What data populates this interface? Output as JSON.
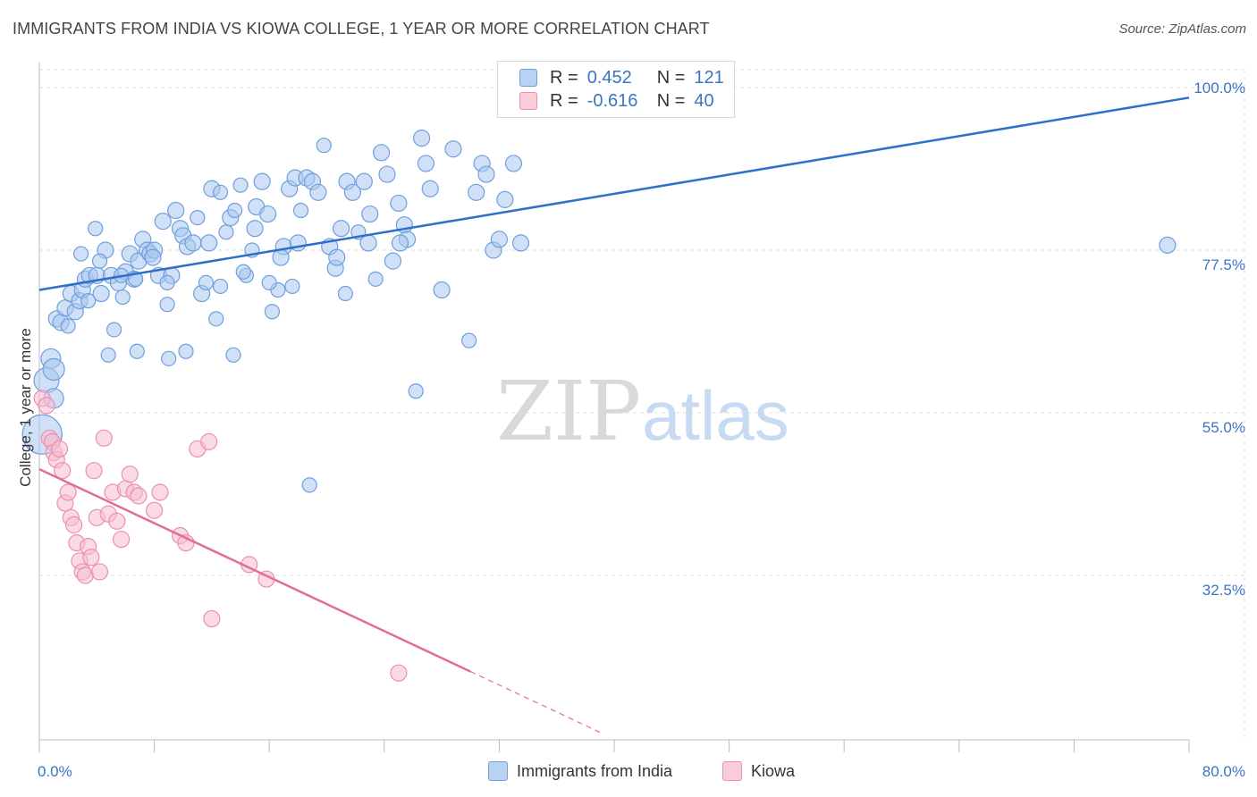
{
  "title": "IMMIGRANTS FROM INDIA VS KIOWA COLLEGE, 1 YEAR OR MORE CORRELATION CHART",
  "source": "Source: ZipAtlas.com",
  "watermark": {
    "zip": "ZIP",
    "atlas": "atlas"
  },
  "colors": {
    "blue_fill": "#a9c8f0",
    "blue_stroke": "#6f9fdc",
    "blue_line": "#2f6fc9",
    "pink_fill": "#f6bdd0",
    "pink_stroke": "#ec8fb0",
    "pink_line": "#e46c98",
    "axis_label": "#3a75c4"
  },
  "legend": {
    "r_label": "R =",
    "n_label": "N =",
    "series": [
      {
        "r": "0.452",
        "n": "121"
      },
      {
        "r": "-0.616",
        "n": "40"
      }
    ]
  },
  "chart_data": {
    "type": "scatter",
    "ylabel": "College, 1 year or more",
    "xlim": [
      0,
      80
    ],
    "ylim": [
      10,
      103
    ],
    "x_ticks": [
      "0.0%",
      "80.0%"
    ],
    "y_ticks": [
      {
        "value": 100.0,
        "label": "100.0%"
      },
      {
        "value": 77.5,
        "label": "77.5%"
      },
      {
        "value": 55.0,
        "label": "55.0%"
      },
      {
        "value": 32.5,
        "label": "32.5%"
      }
    ],
    "grid": true,
    "legend_position": "top-center",
    "series": [
      {
        "name": "Immigrants from India",
        "trend": [
          [
            0,
            72.0
          ],
          [
            80,
            98.6
          ]
        ],
        "points": [
          [
            0.2,
            52,
            22
          ],
          [
            0.5,
            59.5,
            14
          ],
          [
            0.8,
            62.5,
            11
          ],
          [
            1.0,
            61,
            12
          ],
          [
            1.2,
            68,
            9
          ],
          [
            1.5,
            67.5,
            9
          ],
          [
            1.8,
            69.5,
            9
          ],
          [
            2.2,
            71.5,
            9
          ],
          [
            2.5,
            69,
            9
          ],
          [
            2.8,
            70.5,
            9
          ],
          [
            3.0,
            72,
            9
          ],
          [
            3.2,
            73.5,
            9
          ],
          [
            3.5,
            74,
            9
          ],
          [
            4.0,
            74,
            9
          ],
          [
            4.3,
            71.5,
            9
          ],
          [
            4.6,
            77.5,
            9
          ],
          [
            5.0,
            74,
            9
          ],
          [
            5.2,
            66.5,
            8
          ],
          [
            5.5,
            73,
            9
          ],
          [
            5.8,
            71,
            8
          ],
          [
            6.0,
            74.5,
            9
          ],
          [
            6.3,
            77,
            9
          ],
          [
            6.6,
            73.5,
            9
          ],
          [
            6.9,
            76,
            9
          ],
          [
            7.2,
            79,
            9
          ],
          [
            7.5,
            77.5,
            9
          ],
          [
            7.7,
            77,
            9
          ],
          [
            8.0,
            77.5,
            9
          ],
          [
            8.3,
            74,
            9
          ],
          [
            8.6,
            81.5,
            9
          ],
          [
            8.9,
            70,
            8
          ],
          [
            9.2,
            74,
            9
          ],
          [
            9.5,
            83,
            9
          ],
          [
            9.8,
            80.5,
            9
          ],
          [
            10.0,
            79.5,
            9
          ],
          [
            10.3,
            78,
            9
          ],
          [
            10.7,
            78.5,
            9
          ],
          [
            11.0,
            82,
            8
          ],
          [
            11.3,
            71.5,
            9
          ],
          [
            11.6,
            73,
            8
          ],
          [
            12.0,
            86,
            9
          ],
          [
            12.3,
            68,
            8
          ],
          [
            12.6,
            85.5,
            8
          ],
          [
            13.0,
            80,
            8
          ],
          [
            13.3,
            82,
            9
          ],
          [
            13.6,
            83,
            8
          ],
          [
            14.0,
            86.5,
            8
          ],
          [
            14.4,
            74,
            8
          ],
          [
            14.8,
            77.5,
            8
          ],
          [
            15.1,
            83.5,
            9
          ],
          [
            15.5,
            87,
            9
          ],
          [
            15.9,
            82.5,
            9
          ],
          [
            16.2,
            69,
            8
          ],
          [
            16.6,
            72,
            8
          ],
          [
            17.0,
            78,
            9
          ],
          [
            17.4,
            86,
            9
          ],
          [
            17.8,
            87.5,
            9
          ],
          [
            18.2,
            83,
            8
          ],
          [
            18.6,
            87.5,
            9
          ],
          [
            19.0,
            87,
            9
          ],
          [
            19.4,
            85.5,
            9
          ],
          [
            19.8,
            92,
            8
          ],
          [
            20.2,
            78,
            9
          ],
          [
            20.6,
            75,
            9
          ],
          [
            21.0,
            80.5,
            9
          ],
          [
            21.4,
            87,
            9
          ],
          [
            21.8,
            85.5,
            9
          ],
          [
            22.2,
            80,
            8
          ],
          [
            22.6,
            87,
            9
          ],
          [
            23.0,
            82.5,
            9
          ],
          [
            23.4,
            73.5,
            8
          ],
          [
            23.8,
            91,
            9
          ],
          [
            24.2,
            88,
            9
          ],
          [
            24.6,
            76,
            9
          ],
          [
            25.0,
            84,
            9
          ],
          [
            25.4,
            81,
            9
          ],
          [
            25.6,
            79,
            9
          ],
          [
            26.2,
            58,
            8
          ],
          [
            26.6,
            93,
            9
          ],
          [
            26.9,
            89.5,
            9
          ],
          [
            27.2,
            86,
            9
          ],
          [
            28.0,
            72,
            9
          ],
          [
            28.8,
            91.5,
            9
          ],
          [
            29.9,
            65,
            8
          ],
          [
            30.4,
            85.5,
            9
          ],
          [
            30.8,
            89.5,
            9
          ],
          [
            31.1,
            88,
            9
          ],
          [
            31.6,
            77.5,
            9
          ],
          [
            32.0,
            79,
            9
          ],
          [
            32.4,
            84.5,
            9
          ],
          [
            33.0,
            89.5,
            9
          ],
          [
            33.5,
            78.5,
            9
          ],
          [
            4.8,
            63,
            8
          ],
          [
            6.8,
            63.5,
            8
          ],
          [
            9.0,
            62.5,
            8
          ],
          [
            10.2,
            63.5,
            8
          ],
          [
            13.5,
            63,
            8
          ],
          [
            3.4,
            70.5,
            8
          ],
          [
            2.0,
            67,
            8
          ],
          [
            1.0,
            57,
            11
          ],
          [
            18.8,
            45,
            8
          ],
          [
            18.0,
            78.5,
            9
          ],
          [
            7.9,
            76.5,
            9
          ],
          [
            16.8,
            76.5,
            9
          ],
          [
            15.0,
            80.5,
            9
          ],
          [
            11.8,
            78.5,
            9
          ],
          [
            22.9,
            78.5,
            9
          ],
          [
            20.7,
            76.5,
            9
          ],
          [
            25.1,
            78.5,
            9
          ],
          [
            16.0,
            73,
            8
          ],
          [
            12.6,
            72.5,
            8
          ],
          [
            8.9,
            73,
            8
          ],
          [
            6.7,
            73.5,
            8
          ],
          [
            5.7,
            74,
            8
          ],
          [
            4.2,
            76,
            8
          ],
          [
            2.9,
            77,
            8
          ],
          [
            3.9,
            80.5,
            8
          ],
          [
            14.2,
            74.5,
            8
          ],
          [
            17.6,
            72.5,
            8
          ],
          [
            21.3,
            71.5,
            8
          ],
          [
            78.5,
            78.2,
            9
          ]
        ]
      },
      {
        "name": "Kiowa",
        "trend": [
          [
            0,
            47.2
          ],
          [
            30,
            19.2
          ]
        ],
        "trend_dashed": [
          [
            30,
            19.2
          ],
          [
            39,
            10.8
          ]
        ],
        "points": [
          [
            0.2,
            57,
            9
          ],
          [
            0.5,
            56,
            9
          ],
          [
            0.7,
            51.5,
            9
          ],
          [
            0.9,
            51,
            9
          ],
          [
            1.0,
            49.5,
            9
          ],
          [
            1.2,
            48.5,
            9
          ],
          [
            1.4,
            50,
            9
          ],
          [
            1.6,
            47,
            9
          ],
          [
            1.8,
            42.5,
            9
          ],
          [
            2.0,
            44,
            9
          ],
          [
            2.2,
            40.5,
            9
          ],
          [
            2.4,
            39.5,
            9
          ],
          [
            2.6,
            37,
            9
          ],
          [
            2.8,
            34.5,
            9
          ],
          [
            3.0,
            33,
            9
          ],
          [
            3.2,
            32.5,
            9
          ],
          [
            3.4,
            36.5,
            9
          ],
          [
            3.6,
            35,
            9
          ],
          [
            3.8,
            47,
            9
          ],
          [
            4.0,
            40.5,
            9
          ],
          [
            4.2,
            33,
            9
          ],
          [
            4.5,
            51.5,
            9
          ],
          [
            4.8,
            41,
            9
          ],
          [
            5.1,
            44,
            9
          ],
          [
            5.4,
            40,
            9
          ],
          [
            5.7,
            37.5,
            9
          ],
          [
            6.0,
            44.5,
            9
          ],
          [
            6.3,
            46.5,
            9
          ],
          [
            6.6,
            44,
            9
          ],
          [
            6.9,
            43.5,
            9
          ],
          [
            8.0,
            41.5,
            9
          ],
          [
            8.4,
            44,
            9
          ],
          [
            9.8,
            38,
            9
          ],
          [
            10.2,
            37,
            9
          ],
          [
            11.0,
            50,
            9
          ],
          [
            11.8,
            51,
            9
          ],
          [
            12.0,
            26.5,
            9
          ],
          [
            14.6,
            34,
            9
          ],
          [
            15.8,
            32,
            9
          ],
          [
            25.0,
            19,
            9
          ]
        ]
      }
    ]
  },
  "bottom_legend": [
    "Immigrants from India",
    "Kiowa"
  ]
}
